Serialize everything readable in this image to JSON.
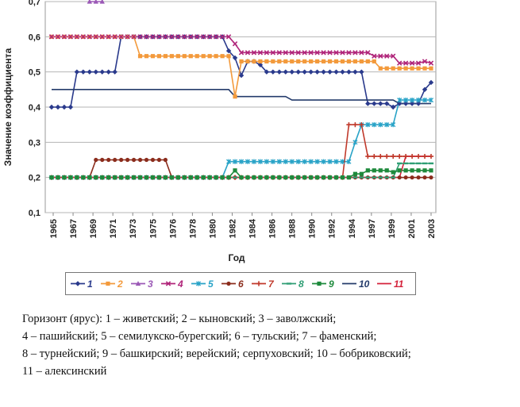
{
  "chart_data": {
    "type": "line",
    "xlabel": "Год",
    "ylabel": "Значение коэффициента",
    "ylim": [
      0.1,
      0.7
    ],
    "yticks": [
      "0,1",
      "0,2",
      "0,3",
      "0,4",
      "0,5",
      "0,6",
      "0,7"
    ],
    "x_tick_labels": [
      "1965",
      "1967",
      "1969",
      "1971",
      "1973",
      "1975",
      "1976",
      "1978",
      "1980",
      "1982",
      "1984",
      "1986",
      "1988",
      "1990",
      "1992",
      "1994",
      "1997",
      "1999",
      "2001",
      "2003"
    ],
    "grid": "horizontal",
    "legend_position": "bottom",
    "series": [
      {
        "name": "1",
        "color": "#2a3a8c",
        "marker": "diamond",
        "values": [
          0.4,
          0.4,
          0.4,
          0.4,
          0.5,
          0.5,
          0.5,
          0.5,
          0.5,
          0.5,
          0.5,
          0.6,
          0.6,
          0.6,
          0.6,
          0.6,
          0.6,
          0.6,
          0.6,
          0.6,
          0.6,
          0.6,
          0.6,
          0.6,
          0.6,
          0.6,
          0.6,
          0.6,
          0.56,
          0.54,
          0.49,
          0.53,
          0.53,
          0.52,
          0.5,
          0.5,
          0.5,
          0.5,
          0.5,
          0.5,
          0.5,
          0.5,
          0.5,
          0.5,
          0.5,
          0.5,
          0.5,
          0.5,
          0.5,
          0.5,
          0.41,
          0.41,
          0.41,
          0.41,
          0.4,
          0.41,
          0.41,
          0.41,
          0.41,
          0.45,
          0.47
        ]
      },
      {
        "name": "2",
        "color": "#f39a3c",
        "marker": "square",
        "values": [
          0.6,
          0.6,
          0.6,
          0.6,
          0.6,
          0.6,
          0.6,
          0.6,
          0.6,
          0.6,
          0.6,
          0.6,
          0.6,
          0.6,
          0.545,
          0.545,
          0.545,
          0.545,
          0.545,
          0.545,
          0.545,
          0.545,
          0.545,
          0.545,
          0.545,
          0.545,
          0.545,
          0.545,
          0.545,
          0.43,
          0.53,
          0.53,
          0.53,
          0.53,
          0.53,
          0.53,
          0.53,
          0.53,
          0.53,
          0.53,
          0.53,
          0.53,
          0.53,
          0.53,
          0.53,
          0.53,
          0.53,
          0.53,
          0.53,
          0.53,
          0.53,
          0.53,
          0.51,
          0.51,
          0.51,
          0.51,
          0.51,
          0.51,
          0.51,
          0.51,
          0.51
        ]
      },
      {
        "name": "3",
        "color": "#9b59b6",
        "marker": "triangle",
        "values": [
          null,
          null,
          null,
          null,
          null,
          null,
          0.7,
          0.7,
          0.7,
          null,
          null,
          null,
          null,
          null,
          null,
          null,
          null,
          null,
          null,
          null,
          null,
          null,
          null,
          null,
          null,
          null,
          null,
          null,
          null,
          null,
          null,
          null,
          null,
          null,
          null,
          null,
          null,
          null,
          null,
          null,
          null,
          null,
          null,
          null,
          null,
          null,
          null,
          null,
          null,
          null,
          null,
          null,
          null,
          null,
          null,
          null,
          null,
          null,
          null,
          null,
          null
        ]
      },
      {
        "name": "4",
        "color": "#b0257a",
        "marker": "x",
        "values": [
          0.6,
          0.6,
          0.6,
          0.6,
          0.6,
          0.6,
          0.6,
          0.6,
          0.6,
          0.6,
          0.6,
          0.6,
          0.6,
          0.6,
          0.6,
          0.6,
          0.6,
          0.6,
          0.6,
          0.6,
          0.6,
          0.6,
          0.6,
          0.6,
          0.6,
          0.6,
          0.6,
          0.6,
          0.6,
          0.58,
          0.555,
          0.555,
          0.555,
          0.555,
          0.555,
          0.555,
          0.555,
          0.555,
          0.555,
          0.555,
          0.555,
          0.555,
          0.555,
          0.555,
          0.555,
          0.555,
          0.555,
          0.555,
          0.555,
          0.555,
          0.555,
          0.545,
          0.545,
          0.545,
          0.545,
          0.525,
          0.525,
          0.525,
          0.525,
          0.53,
          0.525
        ]
      },
      {
        "name": "5",
        "color": "#29a3c7",
        "marker": "star",
        "values": [
          0.2,
          0.2,
          0.2,
          0.2,
          0.2,
          0.2,
          0.2,
          0.2,
          0.2,
          0.2,
          0.2,
          0.2,
          0.2,
          0.2,
          0.2,
          0.2,
          0.2,
          0.2,
          0.2,
          0.2,
          0.2,
          0.2,
          0.2,
          0.2,
          0.2,
          0.2,
          0.2,
          0.2,
          0.245,
          0.245,
          0.245,
          0.245,
          0.245,
          0.245,
          0.245,
          0.245,
          0.245,
          0.245,
          0.245,
          0.245,
          0.245,
          0.245,
          0.245,
          0.245,
          0.245,
          0.245,
          0.245,
          0.245,
          0.3,
          0.35,
          0.35,
          0.35,
          0.35,
          0.35,
          0.35,
          0.42,
          0.42,
          0.42,
          0.42,
          0.42,
          0.42
        ]
      },
      {
        "name": "6",
        "color": "#8b2c1c",
        "marker": "circle",
        "values": [
          0.2,
          0.2,
          0.2,
          0.2,
          0.2,
          0.2,
          0.2,
          0.25,
          0.25,
          0.25,
          0.25,
          0.25,
          0.25,
          0.25,
          0.25,
          0.25,
          0.25,
          0.25,
          0.25,
          0.2,
          0.2,
          0.2,
          0.2,
          0.2,
          0.2,
          0.2,
          0.2,
          0.2,
          0.2,
          0.2,
          0.2,
          0.2,
          0.2,
          0.2,
          0.2,
          0.2,
          0.2,
          0.2,
          0.2,
          0.2,
          0.2,
          0.2,
          0.2,
          0.2,
          0.2,
          0.2,
          0.2,
          0.2,
          0.2,
          0.2,
          0.2,
          0.2,
          0.2,
          0.2,
          0.2,
          0.2,
          0.2,
          0.2,
          0.2,
          0.2,
          0.2
        ]
      },
      {
        "name": "7",
        "color": "#c0392b",
        "marker": "plus",
        "values": [
          0.2,
          0.2,
          0.2,
          0.2,
          0.2,
          0.2,
          0.2,
          0.2,
          0.2,
          0.2,
          0.2,
          0.2,
          0.2,
          0.2,
          0.2,
          0.2,
          0.2,
          0.2,
          0.2,
          0.2,
          0.2,
          0.2,
          0.2,
          0.2,
          0.2,
          0.2,
          0.2,
          0.2,
          0.2,
          0.2,
          0.2,
          0.2,
          0.2,
          0.2,
          0.2,
          0.2,
          0.2,
          0.2,
          0.2,
          0.2,
          0.2,
          0.2,
          0.2,
          0.2,
          0.2,
          0.2,
          0.2,
          0.35,
          0.35,
          0.35,
          0.26,
          0.26,
          0.26,
          0.26,
          0.26,
          0.26,
          0.26,
          0.26,
          0.26,
          0.26,
          0.26
        ]
      },
      {
        "name": "8",
        "color": "#2f9e74",
        "marker": "dash",
        "values": [
          0.2,
          0.2,
          0.2,
          0.2,
          0.2,
          0.2,
          0.2,
          0.2,
          0.2,
          0.2,
          0.2,
          0.2,
          0.2,
          0.2,
          0.2,
          0.2,
          0.2,
          0.2,
          0.2,
          0.2,
          0.2,
          0.2,
          0.2,
          0.2,
          0.2,
          0.2,
          0.2,
          0.2,
          0.2,
          0.2,
          0.2,
          0.2,
          0.2,
          0.2,
          0.2,
          0.2,
          0.2,
          0.2,
          0.2,
          0.2,
          0.2,
          0.2,
          0.2,
          0.2,
          0.2,
          0.2,
          0.2,
          0.2,
          0.2,
          0.2,
          0.2,
          0.2,
          0.2,
          0.2,
          0.2,
          0.24,
          0.24,
          0.24,
          0.24,
          0.24,
          0.24
        ]
      },
      {
        "name": "9",
        "color": "#1e8a3c",
        "marker": "square",
        "values": [
          0.2,
          0.2,
          0.2,
          0.2,
          0.2,
          0.2,
          0.2,
          0.2,
          0.2,
          0.2,
          0.2,
          0.2,
          0.2,
          0.2,
          0.2,
          0.2,
          0.2,
          0.2,
          0.2,
          0.2,
          0.2,
          0.2,
          0.2,
          0.2,
          0.2,
          0.2,
          0.2,
          0.2,
          0.2,
          0.22,
          0.2,
          0.2,
          0.2,
          0.2,
          0.2,
          0.2,
          0.2,
          0.2,
          0.2,
          0.2,
          0.2,
          0.2,
          0.2,
          0.2,
          0.2,
          0.2,
          0.2,
          0.2,
          0.21,
          0.21,
          0.22,
          0.22,
          0.22,
          0.22,
          0.215,
          0.22,
          0.22,
          0.22,
          0.22,
          0.22,
          0.22
        ]
      },
      {
        "name": "10",
        "color": "#243b6b",
        "marker": "none",
        "values": [
          0.45,
          0.45,
          0.45,
          0.45,
          0.45,
          0.45,
          0.45,
          0.45,
          0.45,
          0.45,
          0.45,
          0.45,
          0.45,
          0.45,
          0.45,
          0.45,
          0.45,
          0.45,
          0.45,
          0.45,
          0.45,
          0.45,
          0.45,
          0.45,
          0.45,
          0.45,
          0.45,
          0.45,
          0.45,
          0.43,
          0.43,
          0.43,
          0.43,
          0.43,
          0.43,
          0.43,
          0.43,
          0.43,
          0.42,
          0.42,
          0.42,
          0.42,
          0.42,
          0.42,
          0.42,
          0.42,
          0.42,
          0.42,
          0.42,
          0.42,
          0.42,
          0.42,
          0.42,
          0.42,
          0.42,
          0.41,
          0.41,
          0.41,
          0.41,
          0.41,
          0.41
        ]
      },
      {
        "name": "11",
        "color": "#d4213a",
        "marker": "none",
        "values": [
          0.2,
          0.2,
          0.2,
          0.2,
          0.2,
          0.2,
          0.2,
          0.2,
          0.2,
          0.2,
          0.2,
          0.2,
          0.2,
          0.2,
          0.2,
          0.2,
          0.2,
          0.2,
          0.2,
          0.2,
          0.2,
          0.2,
          0.2,
          0.2,
          0.2,
          0.2,
          0.2,
          0.2,
          0.2,
          0.2,
          0.2,
          0.2,
          0.2,
          0.2,
          0.2,
          0.2,
          0.2,
          0.2,
          0.2,
          0.2,
          0.2,
          0.2,
          0.2,
          0.2,
          0.2,
          0.2,
          0.2,
          0.2,
          0.2,
          0.2,
          0.2,
          0.2,
          0.2,
          0.2,
          0.2,
          0.2,
          0.26,
          0.26,
          0.26,
          0.26,
          0.26
        ]
      }
    ]
  },
  "caption": {
    "line1": "Горизонт (ярус): 1 – живетский; 2 – кыновский; 3 – заволжский;",
    "line2": "4 – пашийский; 5 – семилукско-бурегский; 6 – тульский; 7 – фаменский;",
    "line3": "8 – турнейский; 9 – башкирский; верейский; серпуховский; 10 – бобриковский;",
    "line4": "11 – алексинский"
  }
}
